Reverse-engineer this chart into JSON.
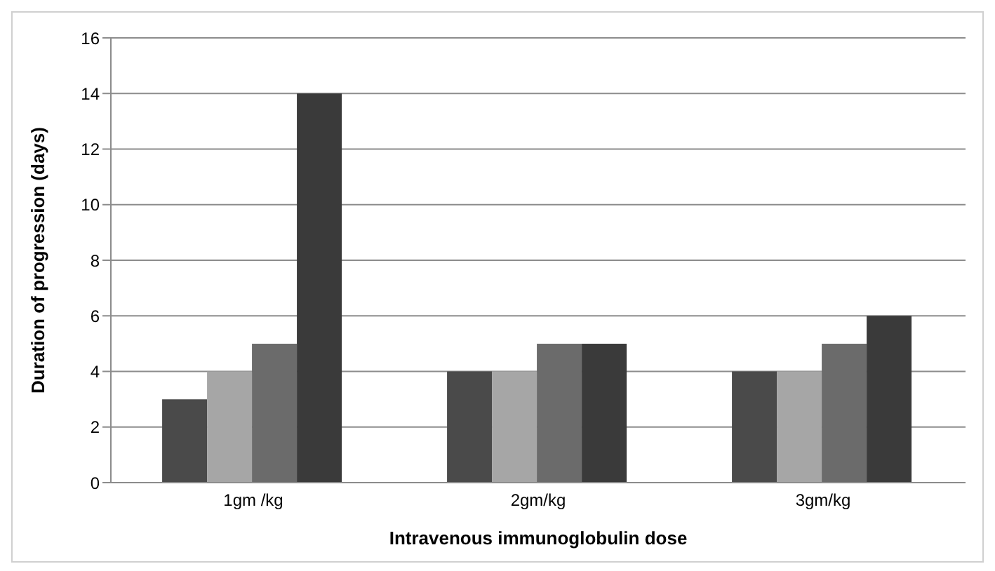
{
  "chart_data": {
    "type": "bar",
    "xlabel": "Intravenous immunoglobulin dose",
    "ylabel": "Duration of progression (days)",
    "categories": [
      "1gm /kg",
      "2gm/kg",
      "3gm/kg"
    ],
    "series": [
      {
        "color": "#4a4a4a",
        "values": [
          3,
          4,
          4
        ]
      },
      {
        "color": "#a6a6a6",
        "values": [
          4,
          4,
          4
        ]
      },
      {
        "color": "#6b6b6b",
        "values": [
          5,
          5,
          5
        ]
      },
      {
        "color": "#3a3a3a",
        "values": [
          14,
          5,
          6
        ]
      }
    ],
    "ylim": [
      0,
      16
    ],
    "yticks": [
      0,
      2,
      4,
      6,
      8,
      10,
      12,
      14,
      16
    ],
    "grid": "y",
    "legend": false
  }
}
